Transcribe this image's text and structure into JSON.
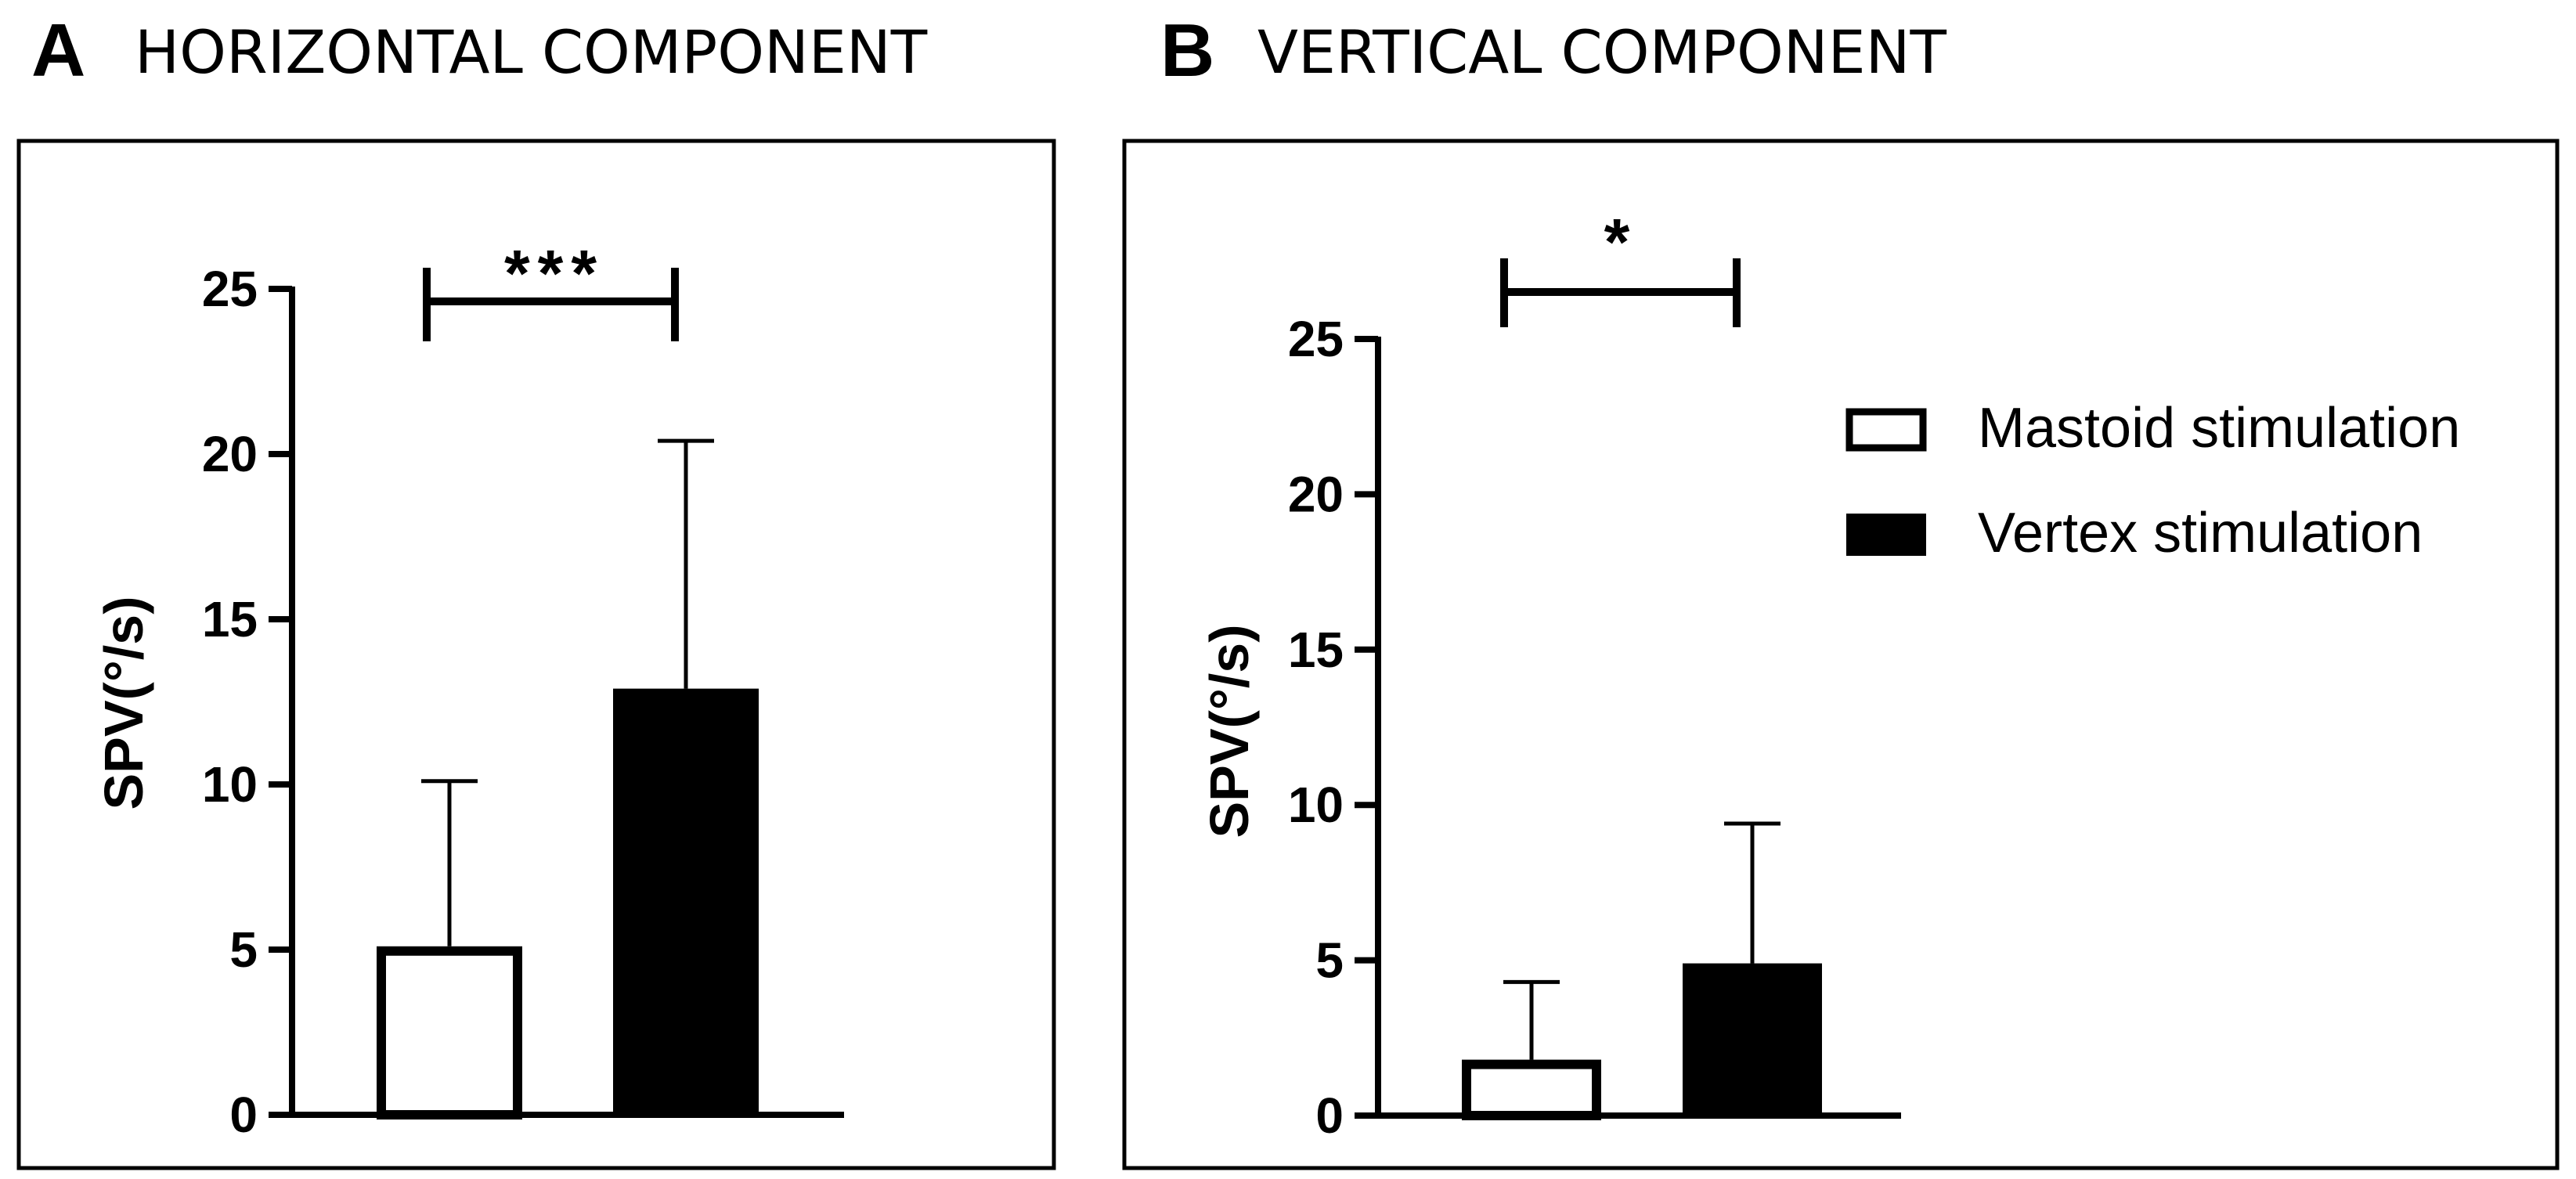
{
  "legend": {
    "items": [
      {
        "label": "Mastoid stimulation",
        "fill": "#ffffff"
      },
      {
        "label": "Vertex stimulation",
        "fill": "#000000"
      }
    ]
  },
  "chart_data": [
    {
      "type": "bar",
      "panel": "A",
      "title": "HORIZONTAL COMPONENT",
      "ylabel": "SPV(°/s)",
      "xlabel": "",
      "ylim": [
        0,
        25
      ],
      "yticks": [
        0,
        5,
        10,
        15,
        20,
        25
      ],
      "categories": [
        "Mastoid stimulation",
        "Vertex stimulation"
      ],
      "values": [
        5.1,
        12.9
      ],
      "errors": [
        5.0,
        7.5
      ],
      "colors": [
        "#ffffff",
        "#000000"
      ],
      "significance": "***"
    },
    {
      "type": "bar",
      "panel": "B",
      "title": "VERTICAL COMPONENT",
      "ylabel": "SPV(°/s)",
      "xlabel": "",
      "ylim": [
        0,
        25
      ],
      "yticks": [
        0,
        5,
        10,
        15,
        20,
        25
      ],
      "categories": [
        "Mastoid stimulation",
        "Vertex stimulation"
      ],
      "values": [
        1.8,
        4.9
      ],
      "errors": [
        2.5,
        4.5
      ],
      "colors": [
        "#ffffff",
        "#000000"
      ],
      "significance": "*"
    }
  ]
}
